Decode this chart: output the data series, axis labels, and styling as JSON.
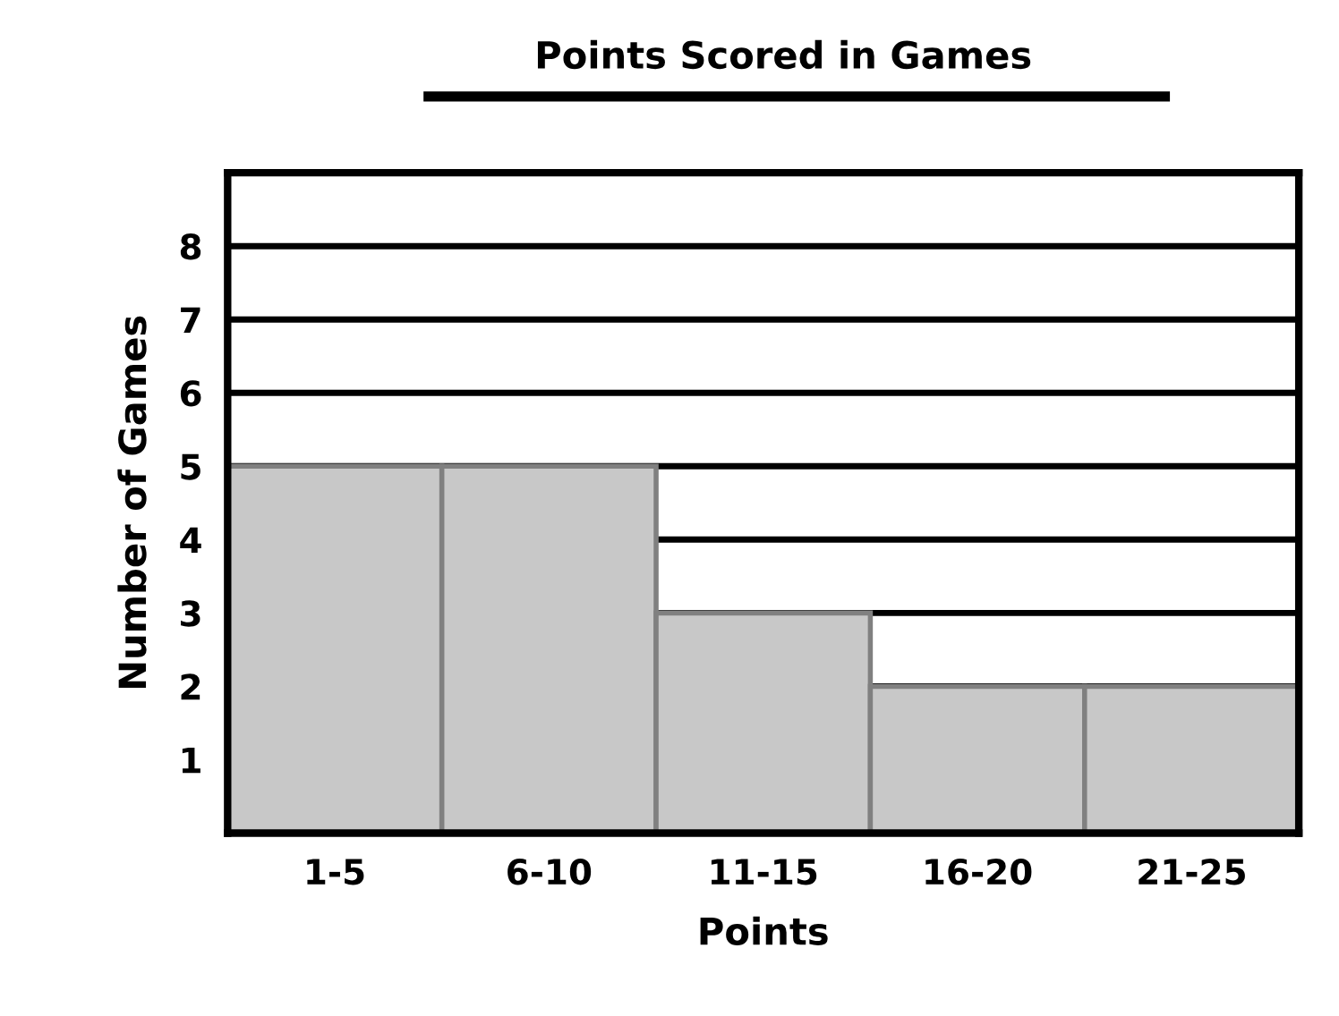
{
  "chart_data": {
    "type": "bar",
    "title": "Points Scored in Games",
    "xlabel": "Points",
    "ylabel": "Number of Games",
    "categories": [
      "1-5",
      "6-10",
      "11-15",
      "16-20",
      "21-25"
    ],
    "values": [
      5,
      5,
      3,
      2,
      2
    ],
    "color": "#c8c8c8",
    "ylim": [
      0,
      9
    ],
    "yticks": [
      1,
      2,
      3,
      4,
      5,
      6,
      7,
      8
    ],
    "grid": "y"
  }
}
